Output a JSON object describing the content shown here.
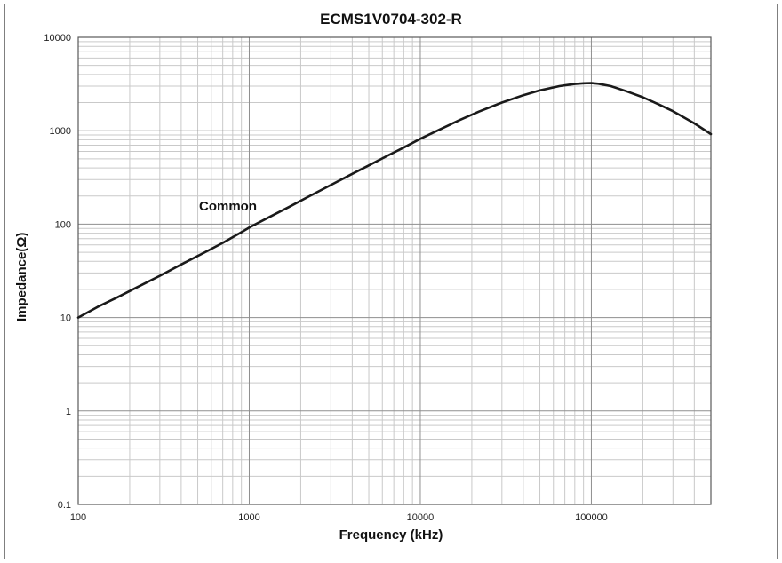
{
  "chart_data": {
    "type": "line",
    "title": "ECMS1V0704-302-R",
    "xlabel": "Frequency (kHz)",
    "ylabel": "Impedance(Ω)",
    "x_scale": "log",
    "y_scale": "log",
    "xlim": [
      100,
      500000
    ],
    "ylim": [
      0.1,
      10000
    ],
    "x_ticks": [
      100,
      1000,
      10000,
      100000
    ],
    "x_tick_labels": [
      "100",
      "1000",
      "10000",
      "100000"
    ],
    "y_ticks": [
      10000,
      1000,
      100,
      10,
      1,
      0.1
    ],
    "y_tick_labels": [
      "10000",
      "1000",
      "100",
      "10",
      "1",
      "0.1"
    ],
    "grid": "major+minor",
    "legend_position": "annotation-on-line",
    "colors": {
      "line": "#1a1a1a",
      "grid_major": "#8f8f8f",
      "grid_minor": "#c9c9c9",
      "plot_border": "#595959"
    },
    "series": [
      {
        "name": "Common",
        "x": [
          100,
          130,
          170,
          220,
          300,
          400,
          550,
          700,
          900,
          1000,
          1300,
          1700,
          2200,
          3000,
          4000,
          5000,
          6500,
          8000,
          10000,
          13000,
          17000,
          22000,
          30000,
          40000,
          50000,
          65000,
          80000,
          90000,
          100000,
          110000,
          130000,
          160000,
          200000,
          250000,
          300000,
          400000,
          500000
        ],
        "y": [
          10,
          13,
          16.5,
          21,
          28,
          37,
          50,
          63,
          82,
          92,
          118,
          152,
          195,
          262,
          345,
          425,
          545,
          660,
          820,
          1030,
          1300,
          1600,
          2000,
          2400,
          2700,
          3000,
          3160,
          3220,
          3230,
          3180,
          3000,
          2650,
          2280,
          1900,
          1620,
          1200,
          920
        ]
      }
    ]
  }
}
